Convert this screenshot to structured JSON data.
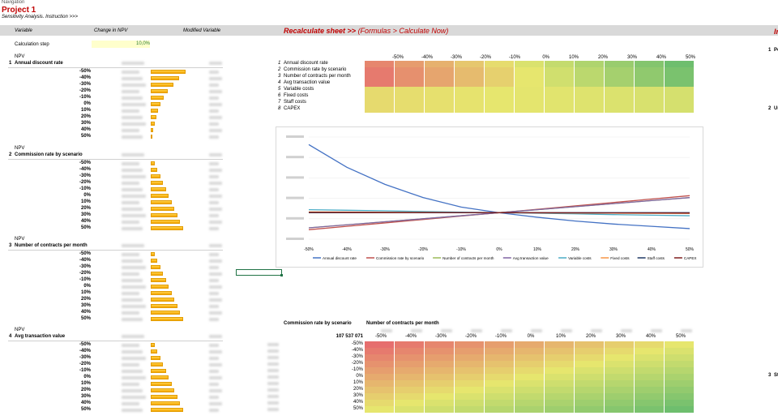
{
  "nav": "Navigation",
  "project": "Project 1",
  "subtitle": "Sensitivity Analysis. Instruction >>>",
  "headers": {
    "variable": "Variable",
    "change": "Change in NPV",
    "modified": "Modified Variable"
  },
  "recalc": {
    "main": "Recalculate sheet >> ",
    "sub": "(Formulas > Calculate Now)"
  },
  "calc_step": {
    "label": "Calculation step",
    "value": "10,0%"
  },
  "npv_label": "NPV",
  "steps": [
    "-50%",
    "-40%",
    "-30%",
    "-20%",
    "-10%",
    "0%",
    "10%",
    "20%",
    "30%",
    "40%",
    "50%"
  ],
  "blocks": [
    {
      "num": "1",
      "name": "Annual discount rate",
      "bars": [
        0.85,
        0.7,
        0.55,
        0.42,
        0.32,
        0.24,
        0.18,
        0.13,
        0.09,
        0.06,
        0.04
      ]
    },
    {
      "num": "2",
      "name": "Commission rate by scenario",
      "bars": [
        0.1,
        0.16,
        0.23,
        0.3,
        0.37,
        0.44,
        0.51,
        0.58,
        0.65,
        0.72,
        0.8
      ]
    },
    {
      "num": "3",
      "name": "Number of contracts per month",
      "bars": [
        0.1,
        0.16,
        0.23,
        0.3,
        0.37,
        0.44,
        0.51,
        0.58,
        0.65,
        0.72,
        0.8
      ]
    },
    {
      "num": "4",
      "name": "Avg transaction value",
      "bars": [
        0.1,
        0.16,
        0.23,
        0.3,
        0.37,
        0.44,
        0.51,
        0.58,
        0.65,
        0.72,
        0.8
      ]
    }
  ],
  "right_list": [
    {
      "num": "1",
      "name": "Annual discount rate"
    },
    {
      "num": "2",
      "name": "Commission rate by scenario"
    },
    {
      "num": "3",
      "name": "Number of contracts per month"
    },
    {
      "num": "4",
      "name": "Avg transaction value"
    },
    {
      "num": "5",
      "name": "Variable costs"
    },
    {
      "num": "6",
      "name": "Fixed costs"
    },
    {
      "num": "7",
      "name": "Staff costs"
    },
    {
      "num": "8",
      "name": "CAPEX"
    }
  ],
  "top_heat_cols": [
    "-50%",
    "-40%",
    "-30%",
    "-20%",
    "-10%",
    "0%",
    "10%",
    "20%",
    "30%",
    "40%",
    "50%"
  ],
  "chart_data": {
    "type": "line",
    "x": [
      "-50%",
      "-40%",
      "-30%",
      "-20%",
      "-10%",
      "0%",
      "10%",
      "20%",
      "30%",
      "40%",
      "50%"
    ],
    "series": [
      {
        "name": "Annual discount rate",
        "color": "#4472c4",
        "values": [
          2.8,
          2.2,
          1.75,
          1.4,
          1.15,
          1.0,
          0.88,
          0.78,
          0.7,
          0.64,
          0.58
        ]
      },
      {
        "name": "Commission rate by scenario",
        "color": "#c0504d",
        "values": [
          0.55,
          0.64,
          0.73,
          0.82,
          0.91,
          1.0,
          1.09,
          1.18,
          1.27,
          1.36,
          1.45
        ]
      },
      {
        "name": "Number of contracts per month",
        "color": "#9bbb59",
        "values": [
          0.6,
          0.68,
          0.76,
          0.84,
          0.92,
          1.0,
          1.08,
          1.16,
          1.24,
          1.32,
          1.4
        ]
      },
      {
        "name": "Avg transaction value",
        "color": "#8064a2",
        "values": [
          0.6,
          0.68,
          0.76,
          0.84,
          0.92,
          1.0,
          1.08,
          1.16,
          1.24,
          1.32,
          1.4
        ]
      },
      {
        "name": "Variable costs",
        "color": "#4bacc6",
        "values": [
          1.08,
          1.065,
          1.05,
          1.03,
          1.015,
          1.0,
          0.985,
          0.97,
          0.95,
          0.935,
          0.92
        ]
      },
      {
        "name": "Fixed costs",
        "color": "#f79646",
        "values": [
          1.02,
          1.016,
          1.012,
          1.008,
          1.004,
          1.0,
          0.996,
          0.992,
          0.988,
          0.984,
          0.98
        ]
      },
      {
        "name": "Staff costs",
        "color": "#1f3864",
        "values": [
          1.0,
          1.0,
          1.0,
          1.0,
          1.0,
          1.0,
          1.0,
          1.0,
          1.0,
          1.0,
          1.0
        ]
      },
      {
        "name": "CAPEX",
        "color": "#7f1d1d",
        "values": [
          1.01,
          1.008,
          1.006,
          1.004,
          1.002,
          1.0,
          0.998,
          0.996,
          0.994,
          0.992,
          0.99
        ]
      }
    ]
  },
  "bottom_table": {
    "row_header": "Commission rate by scenario",
    "col_header": "Number of contracts per month",
    "corner_value": "107 537 071",
    "cols": [
      "-50%",
      "-40%",
      "-30%",
      "-20%",
      "-10%",
      "0%",
      "10%",
      "20%",
      "30%",
      "40%",
      "50%"
    ],
    "rows": [
      "-50%",
      "-40%",
      "-30%",
      "-20%",
      "-10%",
      "0%",
      "10%",
      "20%",
      "30%",
      "40%",
      "50%"
    ]
  },
  "side_labels": [
    {
      "num": "1",
      "text": "Pe"
    },
    {
      "num": "2",
      "text": "Ur"
    },
    {
      "num": "3",
      "text": "St"
    }
  ],
  "side_top_label": "Ir"
}
